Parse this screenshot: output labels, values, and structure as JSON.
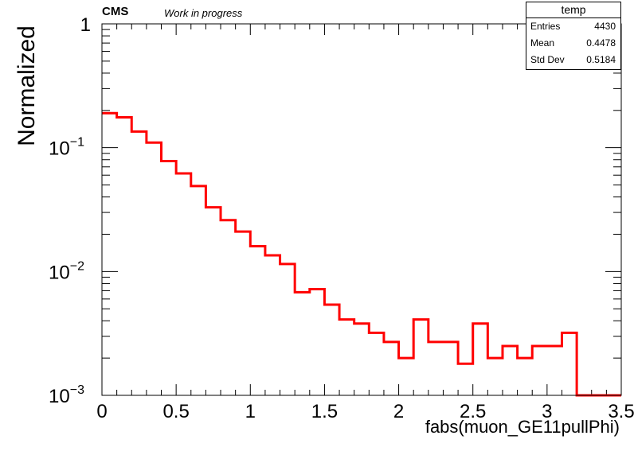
{
  "header": {
    "experiment": "CMS",
    "status": "Work in progress"
  },
  "stats": {
    "title": "temp",
    "rows": [
      {
        "label": "Entries",
        "value": "4430"
      },
      {
        "label": "Mean",
        "value": "0.4478"
      },
      {
        "label": "Std Dev",
        "value": "0.5184"
      }
    ]
  },
  "chart_data": {
    "type": "histogram",
    "title": "",
    "xlabel": "fabs(muon_GE11pullPhi)",
    "ylabel": "Normalized",
    "xlim": [
      0,
      3.5
    ],
    "ylim": [
      0.001,
      1
    ],
    "yscale": "log",
    "grid": false,
    "line_color": "#ff0000",
    "x_ticks": [
      "0",
      "0.5",
      "1",
      "1.5",
      "2",
      "2.5",
      "3",
      "3.5"
    ],
    "y_ticks": [
      {
        "base": "1",
        "exp": ""
      },
      {
        "base": "10",
        "exp": "−1"
      },
      {
        "base": "10",
        "exp": "−2"
      },
      {
        "base": "10",
        "exp": "−3"
      }
    ],
    "bin_edges": [
      0,
      0.1,
      0.2,
      0.3,
      0.4,
      0.5,
      0.6,
      0.7,
      0.8,
      0.9,
      1.0,
      1.1,
      1.2,
      1.3,
      1.4,
      1.5,
      1.6,
      1.7,
      1.8,
      1.9,
      2.0,
      2.1,
      2.2,
      2.3,
      2.4,
      2.5,
      2.6,
      2.7,
      2.8,
      2.9,
      3.0,
      3.1,
      3.2,
      3.3,
      3.4,
      3.5
    ],
    "values": [
      0.19,
      0.176,
      0.135,
      0.11,
      0.078,
      0.062,
      0.049,
      0.033,
      0.026,
      0.021,
      0.016,
      0.0135,
      0.0115,
      0.0068,
      0.0072,
      0.0054,
      0.0041,
      0.0038,
      0.0032,
      0.0027,
      0.002,
      0.0041,
      0.0027,
      0.0027,
      0.0018,
      0.0038,
      0.002,
      0.0025,
      0.002,
      0.0025,
      0.0025,
      0.0032,
      0.001,
      0.001,
      0.001
    ]
  }
}
